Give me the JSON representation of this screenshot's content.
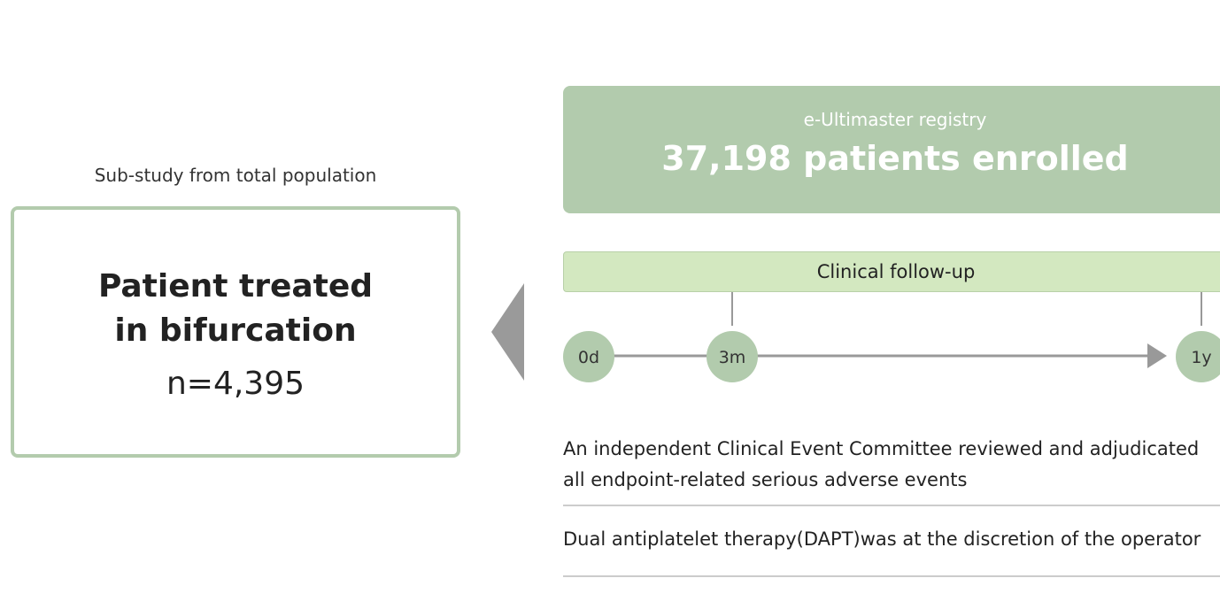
{
  "left": {
    "caption": "Sub-study from total population",
    "title_line1": "Patient treated",
    "title_line2": "in bifurcation",
    "count": "n=4,395"
  },
  "registry": {
    "name": "e-Ultimaster registry",
    "headline": "37,198 patients enrolled"
  },
  "followup": {
    "label": "Clinical follow-up",
    "timepoints": [
      "0d",
      "3m",
      "1y"
    ]
  },
  "notes": [
    "An independent Clinical Event Committee reviewed and adjudicated all endpoint-related serious adverse events",
    "Dual antiplatelet therapy(DAPT)was at the discretion of the operator"
  ]
}
